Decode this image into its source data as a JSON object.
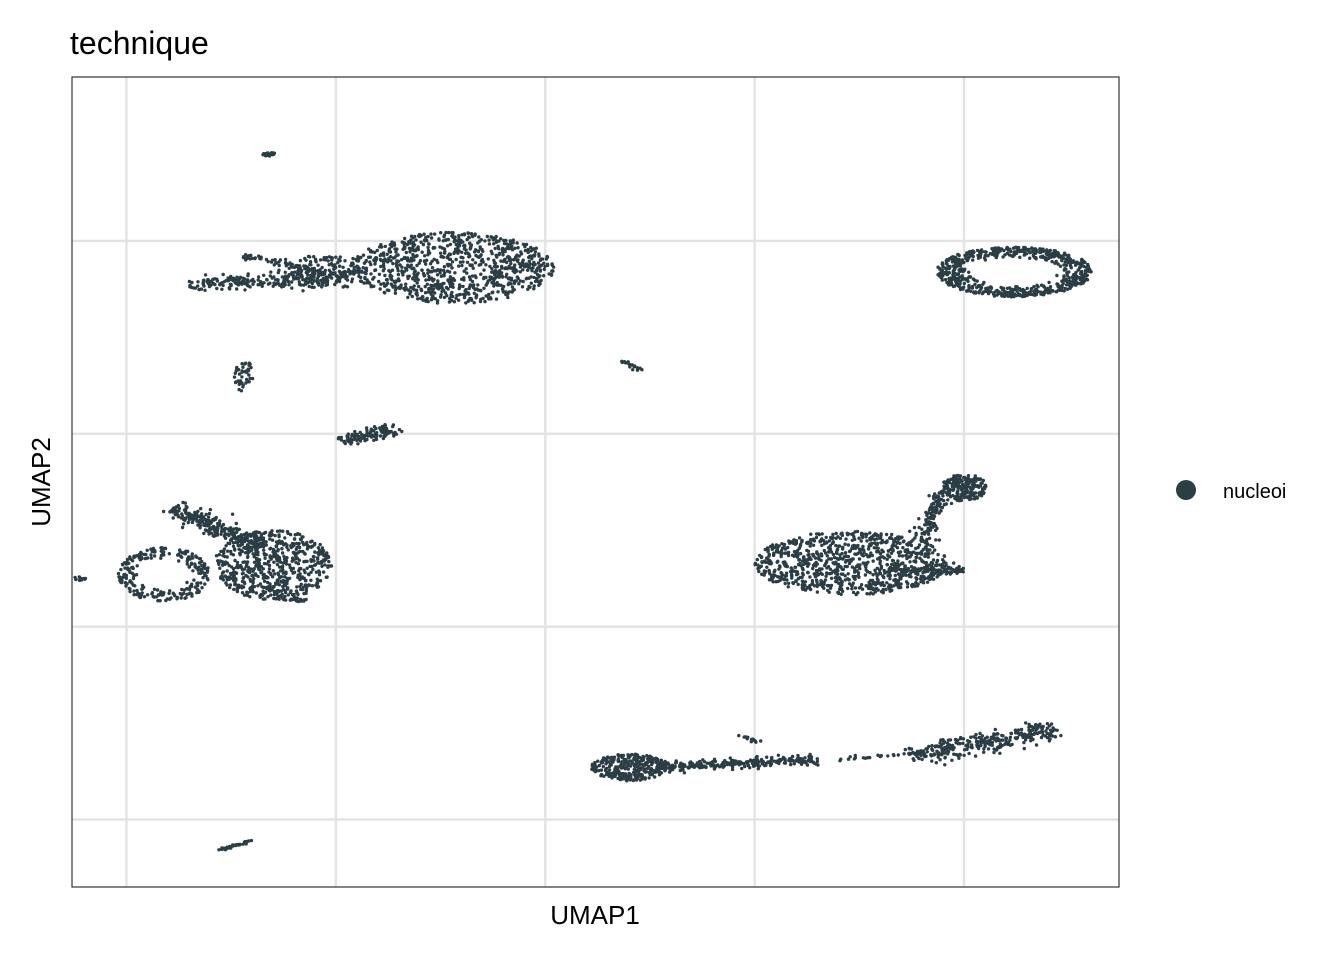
{
  "chart_data": {
    "type": "scatter",
    "title": "technique",
    "xlabel": "UMAP1",
    "ylabel": "UMAP2",
    "x_ticks_labeled": false,
    "y_ticks_labeled": false,
    "grid": true,
    "point_color": "#2b3d45",
    "legend": {
      "placement": "right",
      "entries": [
        {
          "label": "nucleoi",
          "color": "#2b3d45"
        }
      ]
    },
    "xlim": [
      -4.3,
      20.7
    ],
    "ylim": [
      -18.5,
      23.5
    ],
    "clusters": [
      {
        "id": "tiny-top",
        "shape": "ellipse",
        "cx": 0.4,
        "cy": 19.5,
        "rx": 0.15,
        "ry": 0.1,
        "n": 25
      },
      {
        "id": "upper-left-core",
        "shape": "ellipse",
        "cx": 4.8,
        "cy": 13.6,
        "rx": 2.4,
        "ry": 1.85,
        "n": 900
      },
      {
        "id": "upper-left-arm",
        "shape": "segment",
        "x1": -1.5,
        "y1": 12.7,
        "x2": 2.3,
        "y2": 13.2,
        "w": 0.45,
        "n": 220
      },
      {
        "id": "upper-left-mid",
        "shape": "ellipse",
        "cx": 1.8,
        "cy": 13.4,
        "rx": 1.0,
        "ry": 0.9,
        "n": 150
      },
      {
        "id": "upper-left-bridge",
        "shape": "segment",
        "x1": -0.2,
        "y1": 14.2,
        "x2": 1.6,
        "y2": 13.5,
        "w": 0.2,
        "n": 60
      },
      {
        "id": "upper-right",
        "shape": "ring",
        "cx": 18.2,
        "cy": 13.4,
        "rx": 1.85,
        "ry": 1.3,
        "n": 650
      },
      {
        "id": "small-left-a",
        "shape": "ellipse",
        "cx": -0.2,
        "cy": 8.0,
        "rx": 0.25,
        "ry": 0.8,
        "n": 45
      },
      {
        "id": "small-mid",
        "shape": "segment",
        "x1": 8.8,
        "y1": 8.8,
        "x2": 9.3,
        "y2": 8.3,
        "w": 0.1,
        "n": 20
      },
      {
        "id": "small-center-left",
        "shape": "segment",
        "x1": 2.1,
        "y1": 4.6,
        "x2": 3.5,
        "y2": 5.3,
        "w": 0.3,
        "n": 110
      },
      {
        "id": "lower-left-core",
        "shape": "ellipse",
        "cx": 0.5,
        "cy": -1.8,
        "rx": 1.4,
        "ry": 1.8,
        "n": 600
      },
      {
        "id": "lower-left-top",
        "shape": "segment",
        "x1": -1.9,
        "y1": 1.2,
        "x2": 0.2,
        "y2": -0.9,
        "w": 0.4,
        "n": 260
      },
      {
        "id": "lower-left-loop",
        "shape": "ring",
        "cx": -2.1,
        "cy": -2.3,
        "rx": 1.1,
        "ry": 1.4,
        "n": 240
      },
      {
        "id": "lower-left-tail",
        "shape": "segment",
        "x1": 0.5,
        "y1": -3.5,
        "x2": 1.4,
        "y2": -3.7,
        "w": 0.1,
        "n": 20
      },
      {
        "id": "far-left-dot",
        "shape": "ellipse",
        "cx": -4.1,
        "cy": -2.5,
        "rx": 0.15,
        "ry": 0.1,
        "n": 12
      },
      {
        "id": "lower-right-core",
        "shape": "ellipse",
        "cx": 14.3,
        "cy": -1.7,
        "rx": 2.3,
        "ry": 1.65,
        "n": 900
      },
      {
        "id": "lower-right-top",
        "shape": "ellipse",
        "cx": 17.0,
        "cy": 2.2,
        "rx": 0.55,
        "ry": 0.7,
        "n": 200
      },
      {
        "id": "lower-right-stem",
        "shape": "segment",
        "x1": 16.0,
        "y1": -0.6,
        "x2": 16.5,
        "y2": 2.0,
        "w": 0.25,
        "n": 120
      },
      {
        "id": "lower-right-tail",
        "shape": "segment",
        "x1": 15.2,
        "y1": -2.0,
        "x2": 17.0,
        "y2": -2.1,
        "w": 0.25,
        "n": 90
      },
      {
        "id": "bottom-strip-left",
        "shape": "ellipse",
        "cx": 9.0,
        "cy": -12.3,
        "rx": 0.9,
        "ry": 0.7,
        "n": 300
      },
      {
        "id": "bottom-strip-mid",
        "shape": "segment",
        "x1": 9.6,
        "y1": -12.3,
        "x2": 13.5,
        "y2": -11.9,
        "w": 0.25,
        "n": 260
      },
      {
        "id": "bottom-strip-gap",
        "shape": "segment",
        "x1": 14.0,
        "y1": -11.9,
        "x2": 15.7,
        "y2": -11.6,
        "w": 0.1,
        "n": 20
      },
      {
        "id": "bottom-strip-right",
        "shape": "segment",
        "x1": 15.7,
        "y1": -11.7,
        "x2": 19.2,
        "y2": -10.3,
        "w": 0.45,
        "n": 300
      },
      {
        "id": "bottom-strip-bump",
        "shape": "segment",
        "x1": 11.6,
        "y1": -10.6,
        "x2": 12.1,
        "y2": -11.0,
        "w": 0.1,
        "n": 15
      },
      {
        "id": "bottom-left-segment",
        "shape": "segment",
        "x1": -0.8,
        "y1": -16.6,
        "x2": 0.0,
        "y2": -16.1,
        "w": 0.05,
        "n": 40
      }
    ]
  }
}
